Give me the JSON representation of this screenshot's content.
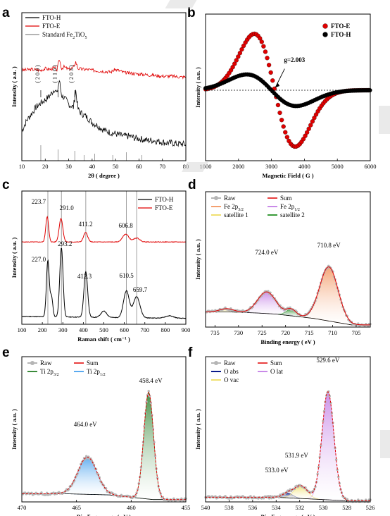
{
  "chart_data": [
    {
      "id": "a",
      "panel_label": "a",
      "type": "line",
      "xlabel": "2θ ( degree )",
      "ylabel": "Intensity ( a.u. )",
      "xlim": [
        10,
        80
      ],
      "xticks": [
        "10",
        "20",
        "30",
        "40",
        "50",
        "60",
        "70",
        "80"
      ],
      "legend": [
        "FTO-H",
        "FTO-E",
        "Standard Fe2TiO5"
      ],
      "legend_position": "top-left",
      "series": [
        {
          "name": "FTO-H",
          "color": "#000000",
          "x": [
            10,
            12,
            14,
            16,
            18,
            20,
            22,
            24,
            25,
            26,
            27,
            28,
            30,
            32,
            33,
            34,
            35,
            36,
            38,
            40,
            42,
            44,
            46,
            48,
            50,
            52,
            54,
            56,
            58,
            60,
            62,
            64,
            66,
            68,
            70,
            72,
            74,
            76,
            78,
            80
          ],
          "y": [
            0.3,
            0.42,
            0.5,
            0.58,
            0.63,
            0.67,
            0.72,
            0.8,
            0.74,
            0.9,
            0.72,
            0.7,
            0.62,
            0.58,
            0.78,
            0.56,
            0.52,
            0.5,
            0.46,
            0.4,
            0.37,
            0.33,
            0.3,
            0.28,
            0.27,
            0.25,
            0.24,
            0.24,
            0.22,
            0.21,
            0.2,
            0.19,
            0.19,
            0.18,
            0.17,
            0.16,
            0.16,
            0.15,
            0.15,
            0.14
          ]
        },
        {
          "name": "FTO-E",
          "color": "#e00000",
          "x": [
            10,
            14,
            18,
            20,
            22,
            24,
            25,
            26,
            27,
            28,
            30,
            32,
            33,
            34,
            36,
            38,
            40,
            44,
            48,
            50,
            54,
            58,
            62,
            66,
            70,
            74,
            78,
            80
          ],
          "y": [
            1.02,
            1.03,
            1.02,
            1.04,
            1.03,
            1.05,
            1.02,
            1.15,
            1.04,
            1.06,
            1.03,
            1.05,
            1.12,
            1.04,
            1.03,
            1.03,
            1.02,
            1.01,
            1.0,
            1.03,
            0.99,
            0.98,
            0.97,
            0.96,
            0.95,
            0.95,
            0.94,
            0.94
          ]
        }
      ],
      "reference_lines_x": [
        18.1,
        25.5,
        32.6,
        36.6,
        41.1,
        48.8,
        54.6,
        61.2
      ],
      "annotations": [
        {
          "text": "( 2 0 0 )",
          "x": 18.1
        },
        {
          "text": "( 1 1 0 )",
          "x": 25.5
        },
        {
          "text": "( 2 0 3 )",
          "x": 32.6
        }
      ]
    },
    {
      "id": "b",
      "panel_label": "b",
      "type": "scatter",
      "xlabel": "Magnetic Field ( G )",
      "ylabel": "Intensity ( a.u. )",
      "xlim": [
        1000,
        6000
      ],
      "xticks": [
        "1000",
        "2000",
        "3000",
        "4000",
        "5000",
        "6000"
      ],
      "legend": [
        "FTO-E",
        "FTO-H"
      ],
      "legend_position": "top-right",
      "series": [
        {
          "name": "FTO-E",
          "color": "#e00000",
          "model": "derivative",
          "center": 3100,
          "width": 620,
          "amplitude": 1.0
        },
        {
          "name": "FTO-H",
          "color": "#000000",
          "model": "derivative",
          "center": 3000,
          "width": 750,
          "amplitude": 0.28
        }
      ],
      "baseline": 0,
      "annotations": [
        {
          "text": "g=2.003"
        }
      ]
    },
    {
      "id": "c",
      "panel_label": "c",
      "type": "line",
      "xlabel": "Raman shift ( cm⁻¹ )",
      "ylabel": "Intensity ( a.u. )",
      "xlim": [
        100,
        900
      ],
      "xticks": [
        "100",
        "200",
        "300",
        "400",
        "500",
        "600",
        "700",
        "800",
        "900"
      ],
      "legend": [
        "FTO-H",
        "FTO-E"
      ],
      "legend_position": "top-right",
      "reference_lines_x": [
        227,
        293,
        412,
        610,
        660
      ],
      "series": [
        {
          "name": "FTO-H",
          "color": "#000000",
          "offset": 0,
          "background": 0.05,
          "peaks": [
            [
              227,
              0.72,
              7
            ],
            [
              245,
              0.25,
              6
            ],
            [
              293,
              0.88,
              8
            ],
            [
              412,
              0.58,
              9
            ],
            [
              500,
              0.08,
              14
            ],
            [
              610,
              0.34,
              14
            ],
            [
              660,
              0.27,
              16
            ],
            [
              820,
              0.03,
              20
            ]
          ]
        },
        {
          "name": "FTO-E",
          "color": "#e00000",
          "offset": 1.0,
          "background": 0.0,
          "peaks": [
            [
              223.7,
              0.32,
              7
            ],
            [
              291,
              0.3,
              9
            ],
            [
              411.2,
              0.12,
              10
            ],
            [
              606.8,
              0.1,
              15
            ],
            [
              660,
              0.05,
              15
            ]
          ]
        }
      ],
      "annotations": [
        {
          "text": "223.7",
          "x": 223.7
        },
        {
          "text": "291.0",
          "x": 291.0
        },
        {
          "text": "411.2",
          "x": 411.2
        },
        {
          "text": "606.8",
          "x": 606.8
        },
        {
          "text": "293.2",
          "x": 293.2
        },
        {
          "text": "227.0",
          "x": 227.0
        },
        {
          "text": "412.3",
          "x": 412.3
        },
        {
          "text": "610.5",
          "x": 610.5
        },
        {
          "text": "659.7",
          "x": 659.7
        }
      ]
    },
    {
      "id": "d",
      "panel_label": "d",
      "type": "area",
      "xlabel": "Binding energy ( eV )",
      "ylabel": "Intensity ( a.u. )",
      "xlim": [
        737,
        702
      ],
      "reversed_x": true,
      "xticks": [
        "735",
        "730",
        "725",
        "720",
        "715",
        "710",
        "705"
      ],
      "legend": [
        "Raw",
        "Sum",
        "Fe 2p3/2",
        "Fe 2p1/2",
        "satellite 1",
        "satellite 2"
      ],
      "legend_position": "top",
      "background": [
        [
          737,
          0.14
        ],
        [
          732,
          0.14
        ],
        [
          726,
          0.13
        ],
        [
          722,
          0.12
        ],
        [
          718,
          0.1
        ],
        [
          714,
          0.08
        ],
        [
          710,
          0.05
        ],
        [
          706,
          0.02
        ],
        [
          702,
          0.02
        ]
      ],
      "components": [
        {
          "name": "Fe 2p3/2",
          "color": "#f4a070",
          "center": 710.8,
          "fwhm": 4.6,
          "height": 0.5
        },
        {
          "name": "Fe 2p1/2",
          "color": "#c98ae8",
          "center": 724.0,
          "fwhm": 4.6,
          "height": 0.2
        },
        {
          "name": "satellite 1",
          "color": "#f0e070",
          "center": 732.5,
          "fwhm": 3.5,
          "height": 0.03
        },
        {
          "name": "satellite 2",
          "color": "#3a9b3a",
          "center": 718.8,
          "fwhm": 2.5,
          "height": 0.06
        }
      ],
      "raw_color": "#b5b5b5",
      "sum_color": "#e00000",
      "annotations": [
        {
          "text": "724.0 eV",
          "x": 724.0
        },
        {
          "text": "710.8 eV",
          "x": 710.8
        }
      ]
    },
    {
      "id": "e",
      "panel_label": "e",
      "type": "area",
      "xlabel": "Binding energy ( eV )",
      "ylabel": "Intensity ( a.u. )",
      "xlim": [
        470,
        455
      ],
      "reversed_x": true,
      "xticks": [
        "470",
        "465",
        "460",
        "455"
      ],
      "legend": [
        "Raw",
        "Sum",
        "Ti 2p3/2",
        "Ti 2p1/2"
      ],
      "legend_position": "top-left",
      "background": [
        [
          470,
          0.07
        ],
        [
          466,
          0.07
        ],
        [
          462,
          0.06
        ],
        [
          460,
          0.04
        ],
        [
          458,
          0.02
        ],
        [
          455,
          0.02
        ]
      ],
      "components": [
        {
          "name": "Ti 2p3/2",
          "color": "#3a8a3a",
          "center": 458.4,
          "fwhm": 1.05,
          "height": 0.92
        },
        {
          "name": "Ti 2p1/2",
          "color": "#5aaaf0",
          "center": 464.0,
          "fwhm": 2.05,
          "height": 0.32
        }
      ],
      "raw_color": "#b5b5b5",
      "sum_color": "#e00000",
      "annotations": [
        {
          "text": "464.0 eV",
          "x": 464.0
        },
        {
          "text": "458.4 eV",
          "x": 458.4
        }
      ]
    },
    {
      "id": "f",
      "panel_label": "f",
      "type": "area",
      "xlabel": "Binding energy ( eV )",
      "ylabel": "Intensity ( a.u. )",
      "xlim": [
        540,
        526
      ],
      "reversed_x": true,
      "xticks": [
        "540",
        "538",
        "536",
        "534",
        "532",
        "530",
        "528",
        "526"
      ],
      "legend": [
        "Raw",
        "Sum",
        "O abs",
        "O lat",
        "O vac"
      ],
      "legend_position": "top-left",
      "background": [
        [
          540,
          0.04
        ],
        [
          534,
          0.04
        ],
        [
          532,
          0.03
        ],
        [
          530,
          0.02
        ],
        [
          528,
          0.01
        ],
        [
          526,
          0.01
        ]
      ],
      "components": [
        {
          "name": "O abs",
          "color": "#0a1a8a",
          "center": 533.0,
          "fwhm": 1.0,
          "height": 0.04
        },
        {
          "name": "O lat",
          "color": "#c98ae8",
          "center": 529.6,
          "fwhm": 1.2,
          "height": 0.93
        },
        {
          "name": "O vac",
          "color": "#f0e070",
          "center": 531.9,
          "fwhm": 1.3,
          "height": 0.11
        }
      ],
      "raw_color": "#b5b5b5",
      "sum_color": "#e00000",
      "annotations": [
        {
          "text": "529.6 eV",
          "x": 529.6
        },
        {
          "text": "531.9 eV",
          "x": 531.9
        },
        {
          "text": "533.0 eV",
          "x": 533.0
        }
      ]
    }
  ]
}
